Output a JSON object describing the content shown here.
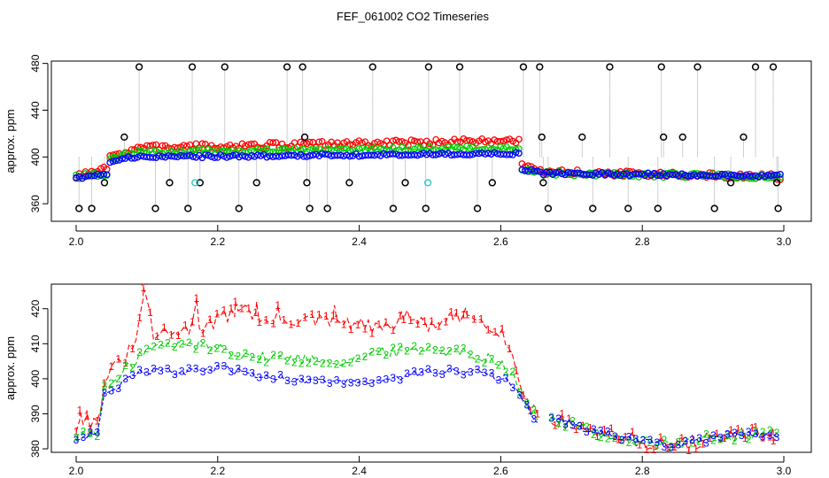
{
  "title": "FEF_061002  CO2 Timeseries",
  "colors": {
    "series1": "#ff0000",
    "series2": "#00cc00",
    "series3": "#0000ff",
    "spike": "#000000",
    "outlier": "#33cccc",
    "connector": "#888888"
  },
  "chart_data": [
    {
      "type": "scatter",
      "title": "FEF_061002  CO2 Timeseries",
      "xlabel": "",
      "ylabel": "approx. ppm",
      "xlim": [
        2.0,
        3.0
      ],
      "ylim": [
        345,
        482
      ],
      "xticks": [
        2.0,
        2.2,
        2.4,
        2.6,
        2.8,
        3.0
      ],
      "xtick_labels": [
        "2.0",
        "2.2",
        "2.4",
        "2.6",
        "2.8",
        "3.0"
      ],
      "yticks": [
        360,
        400,
        440,
        480
      ],
      "ytick_labels": [
        "360",
        "400",
        "440",
        "480"
      ],
      "grid": false,
      "legend": "none",
      "segments": [
        {
          "x0": 2.0,
          "x1": 2.045,
          "y1a": 383,
          "y1b": 390,
          "y2a": 383,
          "y2b": 386,
          "y3a": 382,
          "y3b": 386
        },
        {
          "x0": 2.045,
          "x1": 2.09,
          "y1a": 400,
          "y1b": 408,
          "y2a": 397,
          "y2b": 405,
          "y3a": 396,
          "y3b": 401
        },
        {
          "x0": 2.09,
          "x1": 2.63,
          "y1a": 408,
          "y1b": 414,
          "y2a": 404,
          "y2b": 408,
          "y3a": 400,
          "y3b": 403
        },
        {
          "x0": 2.63,
          "x1": 2.66,
          "y1a": 392,
          "y1b": 386,
          "y2a": 390,
          "y2b": 386,
          "y3a": 390,
          "y3b": 386
        },
        {
          "x0": 2.66,
          "x1": 3.0,
          "y1a": 387,
          "y1b": 383,
          "y2a": 386,
          "y2b": 383,
          "y3a": 386,
          "y3b": 384
        }
      ],
      "spikes": [
        {
          "x": 2.004,
          "y": 356
        },
        {
          "x": 2.022,
          "y": 356
        },
        {
          "x": 2.04,
          "y": 378
        },
        {
          "x": 2.068,
          "y": 417
        },
        {
          "x": 2.089,
          "y": 477
        },
        {
          "x": 2.112,
          "y": 356
        },
        {
          "x": 2.132,
          "y": 378
        },
        {
          "x": 2.158,
          "y": 356
        },
        {
          "x": 2.164,
          "y": 477
        },
        {
          "x": 2.175,
          "y": 378
        },
        {
          "x": 2.21,
          "y": 477
        },
        {
          "x": 2.23,
          "y": 356
        },
        {
          "x": 2.255,
          "y": 378
        },
        {
          "x": 2.298,
          "y": 477
        },
        {
          "x": 2.32,
          "y": 477
        },
        {
          "x": 2.323,
          "y": 417
        },
        {
          "x": 2.326,
          "y": 378
        },
        {
          "x": 2.33,
          "y": 356
        },
        {
          "x": 2.355,
          "y": 356
        },
        {
          "x": 2.386,
          "y": 378
        },
        {
          "x": 2.419,
          "y": 477
        },
        {
          "x": 2.448,
          "y": 356
        },
        {
          "x": 2.465,
          "y": 378
        },
        {
          "x": 2.494,
          "y": 356
        },
        {
          "x": 2.498,
          "y": 477
        },
        {
          "x": 2.542,
          "y": 477
        },
        {
          "x": 2.567,
          "y": 356
        },
        {
          "x": 2.588,
          "y": 378
        },
        {
          "x": 2.632,
          "y": 477
        },
        {
          "x": 2.655,
          "y": 477
        },
        {
          "x": 2.658,
          "y": 417
        },
        {
          "x": 2.66,
          "y": 378
        },
        {
          "x": 2.667,
          "y": 356
        },
        {
          "x": 2.715,
          "y": 417
        },
        {
          "x": 2.73,
          "y": 356
        },
        {
          "x": 2.754,
          "y": 477
        },
        {
          "x": 2.78,
          "y": 356
        },
        {
          "x": 2.822,
          "y": 356
        },
        {
          "x": 2.827,
          "y": 477
        },
        {
          "x": 2.83,
          "y": 417
        },
        {
          "x": 2.857,
          "y": 417
        },
        {
          "x": 2.878,
          "y": 477
        },
        {
          "x": 2.902,
          "y": 356
        },
        {
          "x": 2.925,
          "y": 378
        },
        {
          "x": 2.943,
          "y": 417
        },
        {
          "x": 2.96,
          "y": 477
        },
        {
          "x": 2.985,
          "y": 477
        },
        {
          "x": 2.99,
          "y": 378
        },
        {
          "x": 2.992,
          "y": 356
        }
      ],
      "outliers": [
        {
          "x": 2.168,
          "y": 378
        },
        {
          "x": 2.497,
          "y": 378
        }
      ]
    },
    {
      "type": "line",
      "title": "",
      "xlabel": "",
      "ylabel": "approx. ppm",
      "xlim": [
        2.0,
        3.0
      ],
      "ylim": [
        379,
        427
      ],
      "xticks": [
        2.0,
        2.2,
        2.4,
        2.6,
        2.8,
        3.0
      ],
      "xtick_labels": [
        "2.0",
        "2.2",
        "2.4",
        "2.6",
        "2.8",
        "3.0"
      ],
      "yticks": [
        380,
        390,
        400,
        410,
        420
      ],
      "ytick_labels": [
        "380",
        "390",
        "400",
        "410",
        "420"
      ],
      "grid": false,
      "legend": "none",
      "x_end": 2.99,
      "gap": [
        2.655,
        2.668
      ],
      "series": [
        {
          "name": "1",
          "knots": [
            [
              2.0,
              386
            ],
            [
              2.005,
              390
            ],
            [
              2.015,
              388
            ],
            [
              2.03,
              387
            ],
            [
              2.04,
              400
            ],
            [
              2.06,
              404
            ],
            [
              2.085,
              410
            ],
            [
              2.095,
              425
            ],
            [
              2.11,
              412
            ],
            [
              2.16,
              414
            ],
            [
              2.17,
              423
            ],
            [
              2.175,
              414
            ],
            [
              2.24,
              421
            ],
            [
              2.26,
              416
            ],
            [
              2.3,
              417
            ],
            [
              2.38,
              416
            ],
            [
              2.44,
              414
            ],
            [
              2.46,
              418
            ],
            [
              2.5,
              415
            ],
            [
              2.56,
              418
            ],
            [
              2.6,
              414
            ],
            [
              2.62,
              404
            ],
            [
              2.64,
              392
            ],
            [
              2.655,
              390
            ],
            [
              2.668,
              389
            ],
            [
              2.7,
              387
            ],
            [
              2.75,
              384
            ],
            [
              2.8,
              382
            ],
            [
              2.85,
              381
            ],
            [
              2.9,
              383
            ],
            [
              2.95,
              384
            ],
            [
              2.99,
              384
            ]
          ],
          "jitter": 2.2,
          "highs": [
            [
              2.005,
              391
            ],
            [
              2.015,
              391
            ],
            [
              2.095,
              426
            ],
            [
              2.17,
              423
            ],
            [
              2.225,
              422
            ],
            [
              2.255,
              422
            ],
            [
              2.285,
              421
            ],
            [
              2.365,
              421
            ],
            [
              2.46,
              419
            ],
            [
              2.53,
              419
            ],
            [
              2.55,
              420
            ],
            [
              2.955,
              386
            ],
            [
              2.985,
              386
            ]
          ]
        },
        {
          "name": "2",
          "knots": [
            [
              2.0,
              384
            ],
            [
              2.03,
              385
            ],
            [
              2.04,
              397
            ],
            [
              2.06,
              400
            ],
            [
              2.09,
              407
            ],
            [
              2.11,
              409
            ],
            [
              2.16,
              410
            ],
            [
              2.2,
              409
            ],
            [
              2.26,
              406
            ],
            [
              2.3,
              406
            ],
            [
              2.38,
              405
            ],
            [
              2.42,
              407
            ],
            [
              2.5,
              409
            ],
            [
              2.56,
              407
            ],
            [
              2.6,
              405
            ],
            [
              2.62,
              400
            ],
            [
              2.64,
              391
            ],
            [
              2.655,
              388
            ],
            [
              2.668,
              389
            ],
            [
              2.7,
              387
            ],
            [
              2.75,
              384
            ],
            [
              2.8,
              382
            ],
            [
              2.85,
              381
            ],
            [
              2.9,
              383
            ],
            [
              2.95,
              384
            ],
            [
              2.99,
              384
            ]
          ],
          "jitter": 1.6,
          "highs": []
        },
        {
          "name": "3",
          "knots": [
            [
              2.0,
              383
            ],
            [
              2.03,
              385
            ],
            [
              2.04,
              396
            ],
            [
              2.06,
              398
            ],
            [
              2.09,
              402
            ],
            [
              2.11,
              402
            ],
            [
              2.16,
              402
            ],
            [
              2.2,
              403
            ],
            [
              2.26,
              401
            ],
            [
              2.3,
              400
            ],
            [
              2.38,
              399
            ],
            [
              2.42,
              399
            ],
            [
              2.5,
              402
            ],
            [
              2.56,
              402
            ],
            [
              2.6,
              400
            ],
            [
              2.62,
              398
            ],
            [
              2.64,
              391
            ],
            [
              2.655,
              387
            ],
            [
              2.668,
              390
            ],
            [
              2.7,
              387
            ],
            [
              2.75,
              384
            ],
            [
              2.8,
              382
            ],
            [
              2.85,
              381
            ],
            [
              2.9,
              383
            ],
            [
              2.95,
              384
            ],
            [
              2.99,
              384
            ]
          ],
          "jitter": 1.0,
          "highs": []
        }
      ]
    }
  ]
}
